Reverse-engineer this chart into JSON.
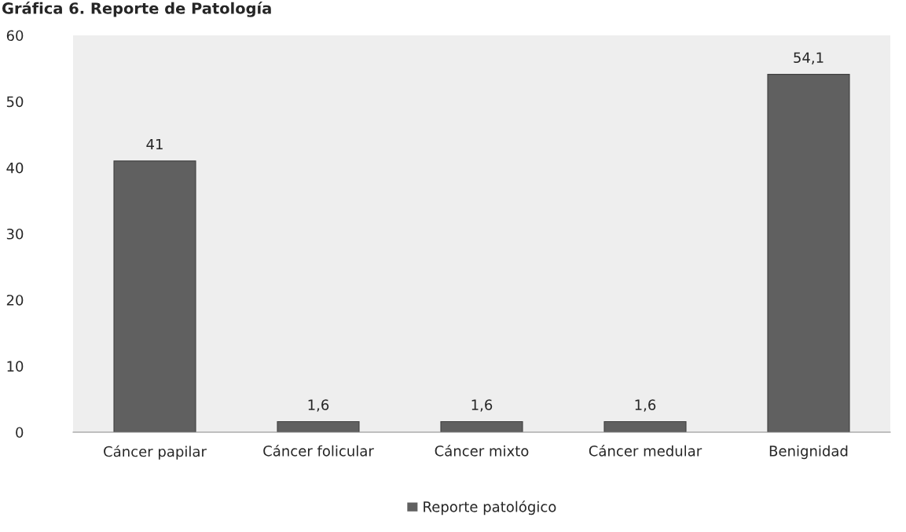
{
  "chart_data": {
    "type": "bar",
    "title": "Gráfica 6. Reporte de Patología",
    "categories": [
      "Cáncer papilar",
      "Cáncer folicular",
      "Cáncer mixto",
      "Cáncer medular",
      "Benignidad"
    ],
    "series": [
      {
        "name": "Reporte patológico",
        "color": "#606060",
        "values": [
          41,
          1.6,
          1.6,
          1.6,
          54.1
        ]
      }
    ],
    "value_labels": [
      "41",
      "1,6",
      "1,6",
      "1,6",
      "54,1"
    ],
    "ylim": [
      0,
      60
    ],
    "yticks": [
      0,
      10,
      20,
      30,
      40,
      50,
      60
    ],
    "grid": false,
    "legend": "bottom"
  }
}
